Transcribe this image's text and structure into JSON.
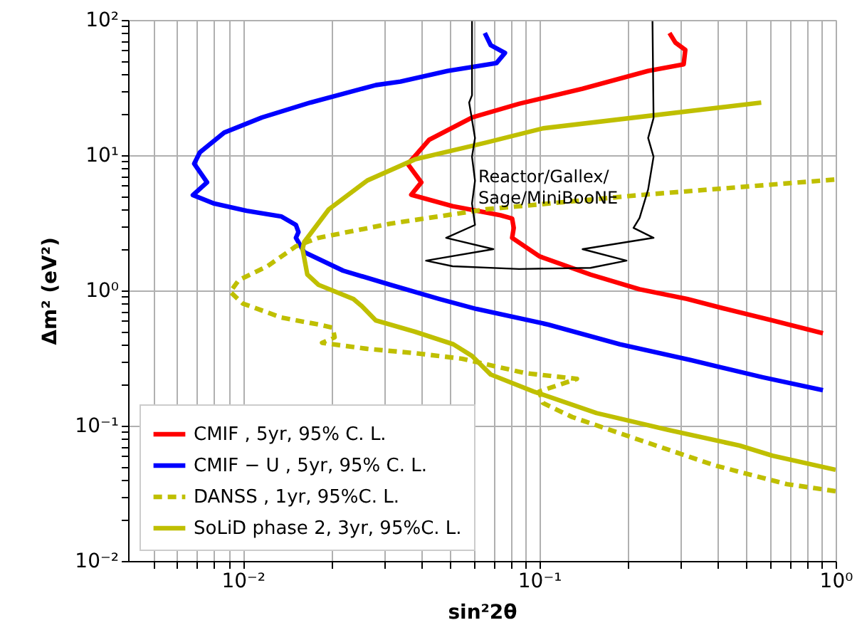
{
  "chart_data": {
    "type": "line",
    "xlabel": "sin²2θ",
    "ylabel": "Δm² (eV²)",
    "log": "xy",
    "grid": true,
    "legend": "bottom left",
    "xlim": [
      0.0041,
      1
    ],
    "ylim": [
      0.01,
      100
    ],
    "xticks": [
      {
        "value": 0.005,
        "label": null
      },
      {
        "value": 0.006,
        "label": null
      },
      {
        "value": 0.007,
        "label": null
      },
      {
        "value": 0.008,
        "label": null
      },
      {
        "value": 0.009,
        "label": null
      },
      {
        "value": 0.01,
        "label": "10⁻²"
      },
      {
        "value": 0.02,
        "label": null
      },
      {
        "value": 0.03,
        "label": null
      },
      {
        "value": 0.04,
        "label": null
      },
      {
        "value": 0.05,
        "label": null
      },
      {
        "value": 0.06,
        "label": null
      },
      {
        "value": 0.07,
        "label": null
      },
      {
        "value": 0.08,
        "label": null
      },
      {
        "value": 0.09,
        "label": null
      },
      {
        "value": 0.1,
        "label": "10⁻¹"
      },
      {
        "value": 0.2,
        "label": null
      },
      {
        "value": 0.3,
        "label": null
      },
      {
        "value": 0.4,
        "label": null
      },
      {
        "value": 0.5,
        "label": null
      },
      {
        "value": 0.6,
        "label": null
      },
      {
        "value": 0.7,
        "label": null
      },
      {
        "value": 0.8,
        "label": null
      },
      {
        "value": 0.9,
        "label": null
      },
      {
        "value": 1,
        "label": "10⁰"
      }
    ],
    "yticks": [
      {
        "value": 0.01,
        "label": "10⁻²"
      },
      {
        "value": 0.02,
        "label": null
      },
      {
        "value": 0.03,
        "label": null
      },
      {
        "value": 0.04,
        "label": null
      },
      {
        "value": 0.05,
        "label": null
      },
      {
        "value": 0.06,
        "label": null
      },
      {
        "value": 0.07,
        "label": null
      },
      {
        "value": 0.08,
        "label": null
      },
      {
        "value": 0.09,
        "label": null
      },
      {
        "value": 0.1,
        "label": "10⁻¹"
      },
      {
        "value": 0.2,
        "label": null
      },
      {
        "value": 0.3,
        "label": null
      },
      {
        "value": 0.4,
        "label": null
      },
      {
        "value": 0.5,
        "label": null
      },
      {
        "value": 0.6,
        "label": null
      },
      {
        "value": 0.7,
        "label": null
      },
      {
        "value": 0.8,
        "label": null
      },
      {
        "value": 0.9,
        "label": null
      },
      {
        "value": 1,
        "label": "10⁰"
      },
      {
        "value": 2,
        "label": null
      },
      {
        "value": 3,
        "label": null
      },
      {
        "value": 4,
        "label": null
      },
      {
        "value": 5,
        "label": null
      },
      {
        "value": 6,
        "label": null
      },
      {
        "value": 7,
        "label": null
      },
      {
        "value": 8,
        "label": null
      },
      {
        "value": 9,
        "label": null
      },
      {
        "value": 10,
        "label": "10¹"
      },
      {
        "value": 20,
        "label": null
      },
      {
        "value": 30,
        "label": null
      },
      {
        "value": 40,
        "label": null
      },
      {
        "value": 50,
        "label": null
      },
      {
        "value": 60,
        "label": null
      },
      {
        "value": 70,
        "label": null
      },
      {
        "value": 80,
        "label": null
      },
      {
        "value": 90,
        "label": null
      },
      {
        "value": 100,
        "label": "10²"
      }
    ],
    "series": [
      {
        "name": "CMIF , 5yr,  95% C. L.",
        "color": "#ff0000",
        "line_style": "solid",
        "x": [
          0.275,
          0.288,
          0.311,
          0.307,
          0.233,
          0.14,
          0.0855,
          0.0593,
          0.0425,
          0.038,
          0.036,
          0.04,
          0.037,
          0.051,
          0.074,
          0.081,
          0.082,
          0.081,
          0.1,
          0.149,
          0.218,
          0.315,
          0.425,
          0.612,
          0.906
        ],
        "values": [
          80,
          68,
          60,
          47,
          42,
          31,
          24,
          19,
          13,
          9.8,
          8.6,
          6.3,
          5.1,
          4.2,
          3.6,
          3.4,
          2.9,
          2.45,
          1.79,
          1.31,
          1.02,
          0.865,
          0.73,
          0.6,
          0.483
        ]
      },
      {
        "name": "CMIF − U , 5yr,  95% C. L.",
        "color": "#0000ff",
        "line_style": "solid",
        "x": [
          0.0655,
          0.0686,
          0.0766,
          0.0717,
          0.0491,
          0.034,
          0.0281,
          0.0169,
          0.0116,
          0.00865,
          0.00716,
          0.00685,
          0.00757,
          0.00678,
          0.008,
          0.0103,
          0.0135,
          0.0151,
          0.0154,
          0.0151,
          0.0161,
          0.0218,
          0.0315,
          0.046,
          0.0613,
          0.107,
          0.187,
          0.325,
          0.568,
          0.906
        ],
        "values": [
          80,
          65,
          57,
          48,
          42,
          35,
          33,
          24.5,
          19,
          14.7,
          10.5,
          8.65,
          6.3,
          5.07,
          4.39,
          3.88,
          3.52,
          3.05,
          2.7,
          2.45,
          1.92,
          1.4,
          1.1,
          0.865,
          0.73,
          0.56,
          0.4,
          0.305,
          0.228,
          0.183
        ]
      },
      {
        "name": "DANSS , 1yr, 95%C. L.",
        "color": "#bfbf00",
        "line_style": "dashed",
        "x": [
          0.99,
          0.218,
          0.0662,
          0.0315,
          0.018,
          0.0151,
          0.0121,
          0.00968,
          0.00906,
          0.01,
          0.0135,
          0.018,
          0.0201,
          0.0204,
          0.0185,
          0.0263,
          0.038,
          0.0548,
          0.0895,
          0.134,
          0.1,
          0.103,
          0.129,
          0.225,
          0.393,
          0.685,
          1.0
        ],
        "values": [
          6.6,
          5.07,
          3.98,
          3.12,
          2.45,
          2.12,
          1.51,
          1.19,
          0.976,
          0.8,
          0.63,
          0.56,
          0.53,
          0.45,
          0.41,
          0.37,
          0.344,
          0.313,
          0.245,
          0.222,
          0.179,
          0.147,
          0.116,
          0.0766,
          0.0507,
          0.037,
          0.0328
        ]
      },
      {
        "name": "SoLiD phase 2, 3yr, 95%C. L.",
        "color": "#bfbf00",
        "line_style": "solid",
        "x": [
          0.561,
          0.243,
          0.103,
          0.0662,
          0.038,
          0.0263,
          0.0195,
          0.0161,
          0.0159,
          0.0165,
          0.018,
          0.0236,
          0.0252,
          0.0281,
          0.038,
          0.0513,
          0.0593,
          0.0686,
          0.0957,
          0.156,
          0.272,
          0.474,
          0.612,
          1.0
        ],
        "values": [
          24.5,
          19.7,
          15.8,
          12.4,
          9.3,
          6.5,
          3.98,
          2.28,
          2.02,
          1.31,
          1.1,
          0.865,
          0.766,
          0.6,
          0.496,
          0.4,
          0.328,
          0.239,
          0.179,
          0.124,
          0.093,
          0.0713,
          0.06,
          0.0472
        ]
      },
      {
        "color": "#000000",
        "line_style": "solid",
        "x": [
          0.0593,
          0.0593,
          0.058,
          0.0607,
          0.0593,
          0.0607,
          0.0593,
          0.0607,
          0.0485,
          0.07,
          0.0415,
          0.051,
          0.0855,
          0.149,
          0.197,
          0.14,
          0.243,
          0.208,
          0.218,
          0.233,
          0.243,
          0.233,
          0.243,
          0.241
        ],
        "values": [
          98,
          27.7,
          24.5,
          13.4,
          9.75,
          6.47,
          4.39,
          3.05,
          2.45,
          2.02,
          1.66,
          1.51,
          1.44,
          1.47,
          1.66,
          2.02,
          2.45,
          2.9,
          3.44,
          5.58,
          9.75,
          13.4,
          18.8,
          98
        ]
      }
    ],
    "annotations": [
      "Reactor/Gallex/\nSage/MiniBooNE"
    ]
  }
}
